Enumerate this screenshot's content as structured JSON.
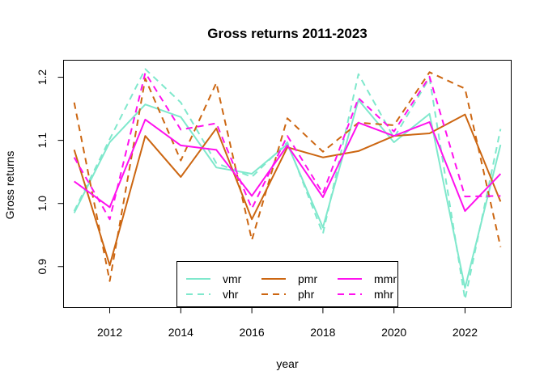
{
  "chart_data": {
    "type": "line",
    "title": "Gross returns 2011-2023",
    "xlabel": "year",
    "ylabel": "Gross returns",
    "x": [
      2011,
      2012,
      2013,
      2014,
      2015,
      2016,
      2017,
      2018,
      2019,
      2020,
      2021,
      2022,
      2023
    ],
    "xlim": [
      2010.7,
      2023.3
    ],
    "ylim": [
      0.835,
      1.227
    ],
    "x_ticks": [
      2012,
      2014,
      2016,
      2018,
      2020,
      2022
    ],
    "y_ticks": [
      0.9,
      1.0,
      1.1,
      1.2
    ],
    "y_tick_labels": [
      "0.9",
      "1.0",
      "1.1",
      "1.2"
    ],
    "grid": false,
    "legend_position": "bottom-center",
    "series": [
      {
        "name": "vmr",
        "color": "#7FE8CC",
        "dash": "solid",
        "values": [
          0.985,
          1.097,
          1.157,
          1.137,
          1.057,
          1.047,
          1.094,
          0.962,
          1.164,
          1.097,
          1.142,
          0.866,
          1.093
        ]
      },
      {
        "name": "vhr",
        "color": "#7FE8CC",
        "dash": "dashed",
        "values": [
          0.988,
          1.102,
          1.213,
          1.16,
          1.064,
          1.042,
          1.097,
          0.952,
          1.205,
          1.104,
          1.199,
          0.848,
          1.118
        ]
      },
      {
        "name": "pmr",
        "color": "#CC6611",
        "dash": "solid",
        "values": [
          1.085,
          0.902,
          1.107,
          1.042,
          1.119,
          0.975,
          1.089,
          1.073,
          1.083,
          1.107,
          1.111,
          1.141,
          1.003
        ]
      },
      {
        "name": "phr",
        "color": "#CC6611",
        "dash": "dashed",
        "values": [
          1.16,
          0.877,
          1.198,
          1.068,
          1.191,
          0.942,
          1.135,
          1.082,
          1.128,
          1.124,
          1.208,
          1.182,
          0.931
        ]
      },
      {
        "name": "mmr",
        "color": "#FF11EE",
        "dash": "solid",
        "values": [
          1.035,
          0.994,
          1.133,
          1.092,
          1.085,
          1.012,
          1.092,
          1.01,
          1.128,
          1.107,
          1.129,
          0.988,
          1.047
        ]
      },
      {
        "name": "mhr",
        "color": "#FF11EE",
        "dash": "dashed",
        "values": [
          1.073,
          0.975,
          1.207,
          1.117,
          1.127,
          0.992,
          1.107,
          1.016,
          1.167,
          1.114,
          1.201,
          1.011,
          1.012
        ]
      }
    ]
  }
}
